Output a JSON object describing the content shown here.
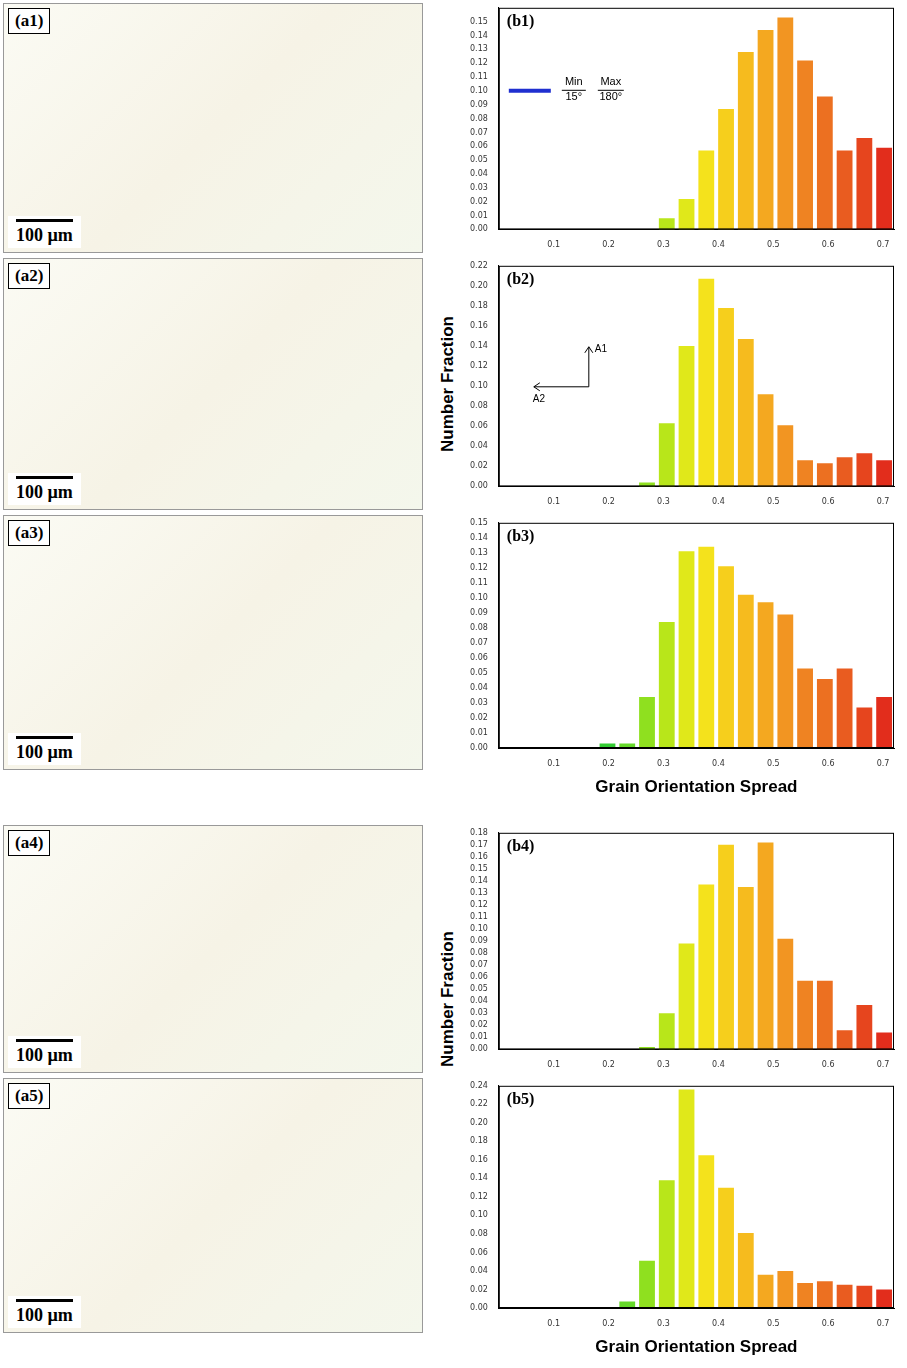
{
  "maps": [
    {
      "label": "(a1)",
      "scale_bar": "100 µm"
    },
    {
      "label": "(a2)",
      "scale_bar": "100 µm"
    },
    {
      "label": "(a3)",
      "scale_bar": "100 µm"
    },
    {
      "label": "(a4)",
      "scale_bar": "100 µm"
    },
    {
      "label": "(a5)",
      "scale_bar": "100 µm"
    }
  ],
  "chart_data": [
    {
      "type": "histogram",
      "title": "(b1)",
      "bins": [
        0,
        0.036,
        0.072,
        0.108,
        0.144,
        0.18,
        0.216,
        0.252,
        0.288,
        0.324,
        0.36,
        0.396,
        0.432,
        0.468,
        0.504,
        0.54,
        0.576,
        0.612,
        0.648,
        0.684,
        0.72
      ],
      "values": [
        0,
        0,
        0,
        0,
        0,
        0,
        0,
        0,
        0.008,
        0.022,
        0.057,
        0.087,
        0.128,
        0.144,
        0.153,
        0.122,
        0.096,
        0.057,
        0.066,
        0.059
      ],
      "colors": [
        "#22bb33",
        "#22bb33",
        "#22bb33",
        "#22bb33",
        "#22bb33",
        "#33cc33",
        "#66d92a",
        "#8fe01f",
        "#b8e61a",
        "#e0e81a",
        "#f4e21c",
        "#f6cf1c",
        "#f6bb1e",
        "#f4a820",
        "#f29522",
        "#ef8322",
        "#ec7021",
        "#e95c20",
        "#e6451e",
        "#e22d1c"
      ],
      "xlim": [
        0,
        0.72
      ],
      "xticks": [
        0.1,
        0.2,
        0.3,
        0.4,
        0.5,
        0.6,
        0.7
      ],
      "ylim": [
        0,
        0.16
      ],
      "yticks": [
        {
          "value": 0,
          "label": "0.00"
        },
        0.01,
        0.02,
        0.03,
        0.04,
        0.05,
        0.06,
        0.07,
        0.08,
        0.09,
        {
          "value": 0.1,
          "label": "0.10"
        },
        0.11,
        0.12,
        0.13,
        0.14,
        0.15
      ],
      "grid": false,
      "annotations": [
        "Min",
        "15°",
        "Max",
        "180°"
      ]
    },
    {
      "type": "histogram",
      "title": "(b2)",
      "ylabel": "Number Fraction",
      "bins": [
        0,
        0.036,
        0.072,
        0.108,
        0.144,
        0.18,
        0.216,
        0.252,
        0.288,
        0.324,
        0.36,
        0.396,
        0.432,
        0.468,
        0.504,
        0.54,
        0.576,
        0.612,
        0.648,
        0.684,
        0.72
      ],
      "values": [
        0,
        0,
        0,
        0,
        0,
        0,
        0,
        0.004,
        0.063,
        0.14,
        0.207,
        0.178,
        0.147,
        0.092,
        0.061,
        0.026,
        0.023,
        0.029,
        0.033,
        0.026
      ],
      "colors": [
        "#22bb33",
        "#22bb33",
        "#22bb33",
        "#22bb33",
        "#22bb33",
        "#33cc33",
        "#66d92a",
        "#8fe01f",
        "#b8e61a",
        "#e0e81a",
        "#f4e21c",
        "#f6cf1c",
        "#f6bb1e",
        "#f4a820",
        "#f29522",
        "#ef8322",
        "#ec7021",
        "#e95c20",
        "#e6451e",
        "#e22d1c"
      ],
      "xlim": [
        0,
        0.72
      ],
      "xticks": [
        0.1,
        0.2,
        0.3,
        0.4,
        0.5,
        0.6,
        0.7
      ],
      "ylim": [
        0,
        0.22
      ],
      "yticks": [
        {
          "value": 0,
          "label": "0.00"
        },
        0.02,
        0.04,
        0.06,
        0.08,
        {
          "value": 0.1,
          "label": "0.10"
        },
        0.12,
        0.14,
        0.16,
        0.18,
        {
          "value": 0.2,
          "label": "0.20"
        },
        0.22
      ],
      "grid": false,
      "annotations": [
        "A1",
        "A2"
      ]
    },
    {
      "type": "histogram",
      "title": "(b3)",
      "xlabel": "Grain Orientation Spread",
      "bins": [
        0,
        0.036,
        0.072,
        0.108,
        0.144,
        0.18,
        0.216,
        0.252,
        0.288,
        0.324,
        0.36,
        0.396,
        0.432,
        0.468,
        0.504,
        0.54,
        0.576,
        0.612,
        0.648,
        0.684,
        0.72
      ],
      "values": [
        0,
        0,
        0,
        0,
        0,
        0.003,
        0.003,
        0.034,
        0.084,
        0.131,
        0.134,
        0.121,
        0.102,
        0.097,
        0.089,
        0.053,
        0.046,
        0.053,
        0.027,
        0.034
      ],
      "colors": [
        "#22bb33",
        "#22bb33",
        "#22bb33",
        "#22bb33",
        "#22bb33",
        "#33cc33",
        "#66d92a",
        "#8fe01f",
        "#b8e61a",
        "#e0e81a",
        "#f4e21c",
        "#f6cf1c",
        "#f6bb1e",
        "#f4a820",
        "#f29522",
        "#ef8322",
        "#ec7021",
        "#e95c20",
        "#e6451e",
        "#e22d1c"
      ],
      "xlim": [
        0,
        0.72
      ],
      "xticks": [
        0.1,
        0.2,
        0.3,
        0.4,
        0.5,
        0.6,
        0.7
      ],
      "ylim": [
        0,
        0.15
      ],
      "yticks": [
        {
          "value": 0,
          "label": "0.00"
        },
        0.01,
        0.02,
        0.03,
        0.04,
        0.05,
        0.06,
        0.07,
        0.08,
        0.09,
        {
          "value": 0.1,
          "label": "0.10"
        },
        0.11,
        0.12,
        0.13,
        0.14,
        0.15
      ],
      "grid": false
    },
    {
      "type": "histogram",
      "title": "(b4)",
      "ylabel": "Number Fraction",
      "bins": [
        0,
        0.036,
        0.072,
        0.108,
        0.144,
        0.18,
        0.216,
        0.252,
        0.288,
        0.324,
        0.36,
        0.396,
        0.432,
        0.468,
        0.504,
        0.54,
        0.576,
        0.612,
        0.648,
        0.684,
        0.72
      ],
      "values": [
        0,
        0,
        0,
        0,
        0,
        0,
        0,
        0.002,
        0.03,
        0.088,
        0.137,
        0.17,
        0.135,
        0.172,
        0.092,
        0.057,
        0.057,
        0.016,
        0.037,
        0.014
      ],
      "colors": [
        "#22bb33",
        "#22bb33",
        "#22bb33",
        "#22bb33",
        "#22bb33",
        "#33cc33",
        "#66d92a",
        "#8fe01f",
        "#b8e61a",
        "#e0e81a",
        "#f4e21c",
        "#f6cf1c",
        "#f6bb1e",
        "#f4a820",
        "#f29522",
        "#ef8322",
        "#ec7021",
        "#e95c20",
        "#e6451e",
        "#e22d1c"
      ],
      "xlim": [
        0,
        0.72
      ],
      "xticks": [
        0.1,
        0.2,
        0.3,
        0.4,
        0.5,
        0.6,
        0.7
      ],
      "ylim": [
        0,
        0.18
      ],
      "yticks": [
        {
          "value": 0,
          "label": "0.00"
        },
        0.01,
        0.02,
        0.03,
        0.04,
        0.05,
        0.06,
        0.07,
        0.08,
        0.09,
        {
          "value": 0.1,
          "label": "0.10"
        },
        0.11,
        0.12,
        0.13,
        0.14,
        0.15,
        0.16,
        0.17,
        0.18
      ],
      "grid": false
    },
    {
      "type": "histogram",
      "title": "(b5)",
      "xlabel": "Grain Orientation Spread",
      "bins": [
        0,
        0.036,
        0.072,
        0.108,
        0.144,
        0.18,
        0.216,
        0.252,
        0.288,
        0.324,
        0.36,
        0.396,
        0.432,
        0.468,
        0.504,
        0.54,
        0.576,
        0.612,
        0.648,
        0.684,
        0.72
      ],
      "values": [
        0,
        0,
        0,
        0,
        0,
        0,
        0.007,
        0.051,
        0.138,
        0.236,
        0.165,
        0.13,
        0.081,
        0.036,
        0.04,
        0.027,
        0.029,
        0.025,
        0.024,
        0.02
      ],
      "colors": [
        "#22bb33",
        "#22bb33",
        "#22bb33",
        "#22bb33",
        "#22bb33",
        "#33cc33",
        "#66d92a",
        "#8fe01f",
        "#b8e61a",
        "#e0e81a",
        "#f4e21c",
        "#f6cf1c",
        "#f6bb1e",
        "#f4a820",
        "#f29522",
        "#ef8322",
        "#ec7021",
        "#e95c20",
        "#e6451e",
        "#e22d1c"
      ],
      "xlim": [
        0,
        0.72
      ],
      "xticks": [
        0.1,
        0.2,
        0.3,
        0.4,
        0.5,
        0.6,
        0.7
      ],
      "ylim": [
        0,
        0.24
      ],
      "yticks": [
        {
          "value": 0,
          "label": "0.00"
        },
        0.02,
        0.04,
        0.06,
        0.08,
        {
          "value": 0.1,
          "label": "0.10"
        },
        0.12,
        0.14,
        0.16,
        0.18,
        {
          "value": 0.2,
          "label": "0.20"
        },
        0.22,
        0.24
      ],
      "grid": false
    }
  ]
}
